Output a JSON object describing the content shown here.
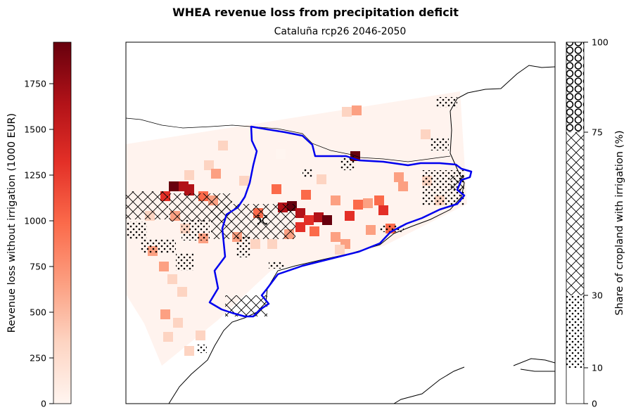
{
  "title": "WHEA revenue loss from precipitation deficit",
  "subtitle": "Cataluña rcp26 2046-2050",
  "left_colorbar": {
    "label": "Revenue loss without irrigation (1000 EUR)",
    "min": 0,
    "max": 1980,
    "ticks": [
      "0",
      "250",
      "500",
      "750",
      "1000",
      "1250",
      "1500",
      "1750"
    ],
    "colormap": [
      "#fff5f0",
      "#fdd4c2",
      "#fca082",
      "#fb6a4a",
      "#e32f27",
      "#b21218",
      "#67000d"
    ]
  },
  "right_colorbar": {
    "label": "Share of cropland with irrigation (%)",
    "ticks": [
      "0",
      "10",
      "30",
      "75",
      "100"
    ],
    "bands": [
      {
        "from": 0,
        "to": 10,
        "pattern": "none"
      },
      {
        "from": 10,
        "to": 30,
        "pattern": "dots"
      },
      {
        "from": 30,
        "to": 75,
        "pattern": "cross-hatch"
      },
      {
        "from": 75,
        "to": 100,
        "pattern": "circles"
      }
    ]
  },
  "map": {
    "region": "Cataluña",
    "boundary_color": "#0000ee",
    "coastline_color": "#000000"
  }
}
